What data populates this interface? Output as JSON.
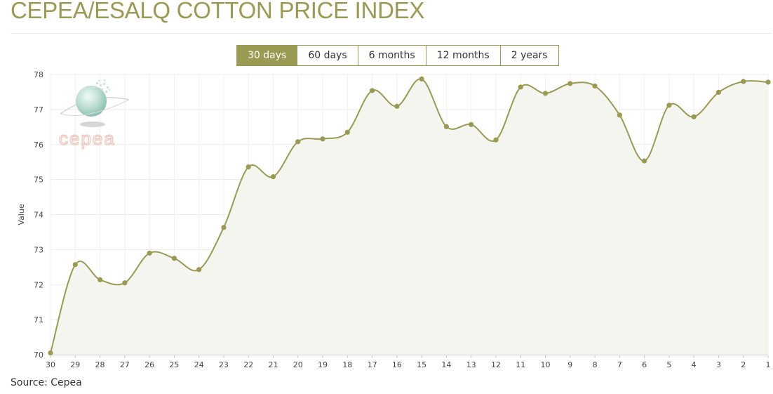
{
  "header": {
    "title": "CEPEA/ESALQ COTTON PRICE INDEX"
  },
  "range_selector": {
    "active": "30 days",
    "buttons": [
      "30 days",
      "60 days",
      "6 months",
      "12 months",
      "2 years"
    ]
  },
  "logo": {
    "text": "cepea"
  },
  "footer": {
    "source": "Source: Cepea"
  },
  "colors": {
    "accent": "#9a9a52",
    "line": "#9a9a52",
    "fill": "#f5f5f0",
    "grid": "#ececec",
    "logo_text": "#f0c8c0"
  },
  "chart_data": {
    "type": "area",
    "title": "",
    "xlabel": "",
    "ylabel": "Value",
    "grid": true,
    "legend": "none",
    "ylim": [
      70,
      78
    ],
    "yticks": [
      70,
      71,
      72,
      73,
      74,
      75,
      76,
      77,
      78
    ],
    "x": [
      "30",
      "29",
      "28",
      "27",
      "26",
      "25",
      "24",
      "23",
      "22",
      "21",
      "20",
      "19",
      "18",
      "17",
      "16",
      "15",
      "14",
      "13",
      "12",
      "11",
      "10",
      "9",
      "8",
      "7",
      "6",
      "5",
      "4",
      "3",
      "2",
      "1"
    ],
    "series": [
      {
        "values": [
          70.05,
          72.57,
          72.14,
          72.05,
          72.9,
          72.75,
          72.43,
          73.63,
          75.36,
          75.08,
          76.08,
          76.16,
          76.35,
          77.54,
          77.09,
          77.87,
          76.51,
          76.57,
          76.13,
          77.64,
          77.46,
          77.74,
          77.67,
          76.84,
          75.53,
          77.12,
          76.79,
          77.49,
          77.8,
          77.78
        ]
      }
    ]
  }
}
